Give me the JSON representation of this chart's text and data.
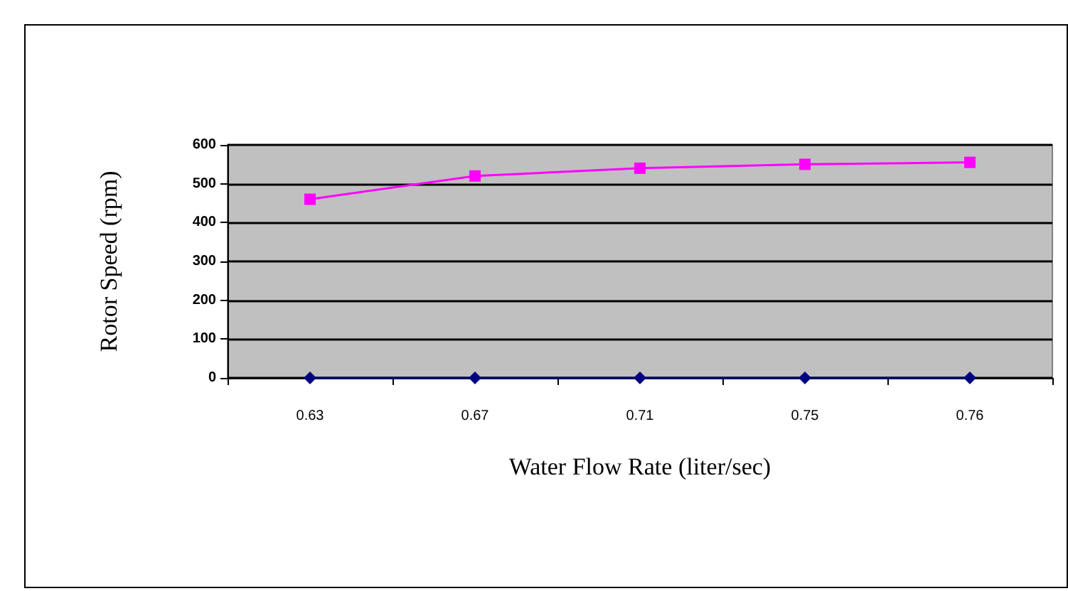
{
  "chart_data": {
    "type": "line",
    "xlabel": "Water Flow Rate (liter/sec)",
    "ylabel": "Rotor Speed (rpm)",
    "categories": [
      "0.63",
      "0.67",
      "0.71",
      "0.75",
      "0.76"
    ],
    "series": [
      {
        "color": "#ff00ff",
        "marker": "square",
        "values": [
          460,
          520,
          540,
          550,
          555
        ]
      },
      {
        "color": "#000080",
        "marker": "diamond",
        "values": [
          0,
          0,
          0,
          0,
          0
        ]
      }
    ],
    "ylim": [
      0,
      600
    ],
    "yticks": [
      0,
      100,
      200,
      300,
      400,
      500,
      600
    ],
    "grid": "y"
  }
}
